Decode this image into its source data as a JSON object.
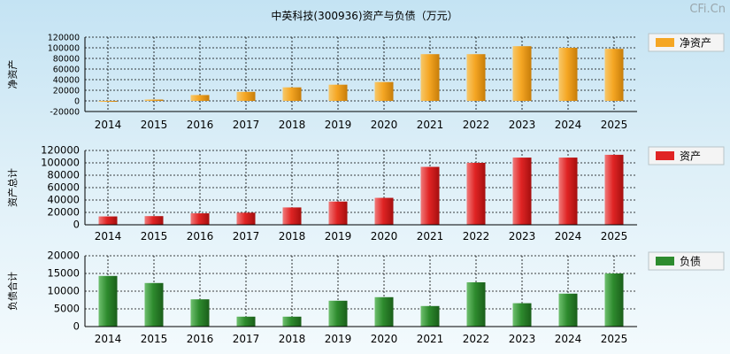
{
  "title": "中英科技(300936)资产与负债（万元）",
  "watermark": "CFi.Cn",
  "chart_data": [
    {
      "type": "bar",
      "ylabel": "净资产",
      "legend": "净资产",
      "color": "#f5a623",
      "categories": [
        "2014",
        "2015",
        "2016",
        "2017",
        "2018",
        "2019",
        "2020",
        "2021",
        "2022",
        "2023",
        "2024",
        "2025"
      ],
      "values": [
        -1500,
        2500,
        11000,
        17000,
        25500,
        30500,
        35500,
        88000,
        88000,
        103000,
        100000,
        98000
      ],
      "yticks": [
        "120000",
        "100000",
        "80000",
        "60000",
        "40000",
        "20000",
        "0",
        "-20000"
      ],
      "ylim": [
        -20000,
        120000
      ],
      "grid": true,
      "legend_position": "right"
    },
    {
      "type": "bar",
      "ylabel": "资产总计",
      "legend": "资产",
      "color": "#e02424",
      "categories": [
        "2014",
        "2015",
        "2016",
        "2017",
        "2018",
        "2019",
        "2020",
        "2021",
        "2022",
        "2023",
        "2024",
        "2025"
      ],
      "values": [
        13500,
        14000,
        18500,
        19500,
        28000,
        37500,
        43500,
        93500,
        100000,
        108500,
        108500,
        113000
      ],
      "yticks": [
        "120000",
        "100000",
        "80000",
        "60000",
        "40000",
        "20000",
        "0"
      ],
      "ylim": [
        0,
        120000
      ],
      "grid": true,
      "legend_position": "right"
    },
    {
      "type": "bar",
      "ylabel": "负债合计",
      "legend": "负债",
      "color": "#2e8b2e",
      "categories": [
        "2014",
        "2015",
        "2016",
        "2017",
        "2018",
        "2019",
        "2020",
        "2021",
        "2022",
        "2023",
        "2024",
        "2025"
      ],
      "values": [
        14300,
        12300,
        7700,
        2800,
        2800,
        7300,
        8300,
        5800,
        12500,
        6600,
        9300,
        15000
      ],
      "yticks": [
        "20000",
        "15000",
        "10000",
        "5000",
        "0"
      ],
      "ylim": [
        0,
        20000
      ],
      "grid": true,
      "legend_position": "right"
    }
  ]
}
